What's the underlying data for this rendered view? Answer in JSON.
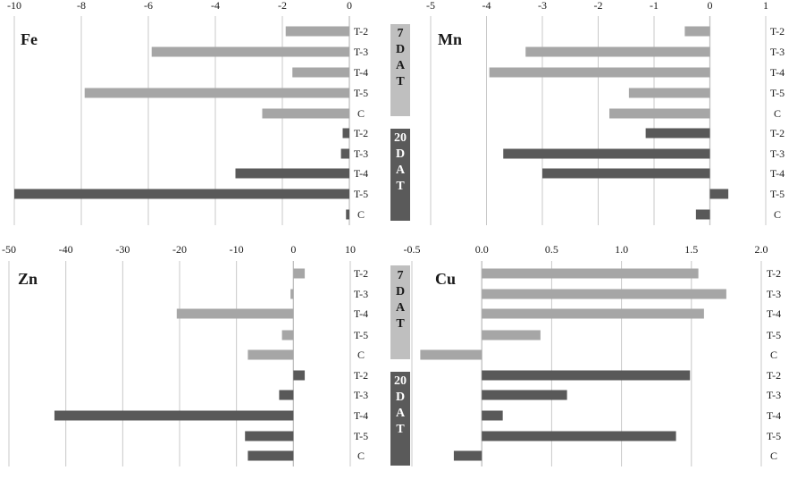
{
  "colors": {
    "dat7_bar": "#a6a6a6",
    "dat20_bar": "#595959",
    "dat7_box": "#bfbfbf",
    "dat20_box": "#5a5a5a",
    "grid": "#c8c8c8",
    "axis": "#bfbfbf",
    "text": "#1a1a1a"
  },
  "rows": [
    "T-2",
    "T-3",
    "T-4",
    "T-5",
    "C",
    "T-2",
    "T-3",
    "T-4",
    "T-5",
    "C"
  ],
  "groups": [
    {
      "label_chars": [
        "7",
        "D",
        "A",
        "T"
      ],
      "series": "7 DAT"
    },
    {
      "label_chars": [
        "20",
        "D",
        "A",
        "T"
      ],
      "series": "20 DAT"
    }
  ],
  "chart_data": [
    {
      "type": "bar",
      "orientation": "horizontal",
      "title": "Fe",
      "categories": [
        "T-2",
        "T-3",
        "T-4",
        "T-5",
        "C"
      ],
      "xlim": [
        -10,
        0
      ],
      "ticks": [
        "-10",
        "-8",
        "-6",
        "-4",
        "-2",
        "0"
      ],
      "tick_values": [
        -10,
        -8,
        -6,
        -4,
        -2,
        0
      ],
      "series": [
        {
          "values": [
            -1.9,
            -5.9,
            -1.7,
            -7.9,
            -2.6
          ]
        },
        {
          "values": [
            -0.2,
            -0.25,
            -3.4,
            -10,
            -0.1
          ]
        }
      ],
      "grid": true
    },
    {
      "type": "bar",
      "orientation": "horizontal",
      "title": "Mn",
      "categories": [
        "T-2",
        "T-3",
        "T-4",
        "T-5",
        "C"
      ],
      "xlim": [
        -5,
        1
      ],
      "ticks": [
        "-5",
        "-4",
        "-3",
        "-2",
        "-1",
        "0",
        "1"
      ],
      "tick_values": [
        -5,
        -4,
        -3,
        -2,
        -1,
        0,
        1
      ],
      "series": [
        {
          "values": [
            -0.45,
            -3.3,
            -3.95,
            -1.45,
            -1.8
          ]
        },
        {
          "values": [
            -1.15,
            -3.7,
            -3.0,
            0.33,
            -0.25
          ]
        }
      ],
      "grid": true
    },
    {
      "type": "bar",
      "orientation": "horizontal",
      "title": "Zn",
      "categories": [
        "T-2",
        "T-3",
        "T-4",
        "T-5",
        "C"
      ],
      "xlim": [
        -50,
        10
      ],
      "ticks": [
        "-50",
        "-40",
        "-30",
        "-20",
        "-10",
        "0",
        "10"
      ],
      "tick_values": [
        -50,
        -40,
        -30,
        -20,
        -10,
        0,
        10
      ],
      "series": [
        {
          "values": [
            2,
            -0.5,
            -20.5,
            -2,
            -8
          ]
        },
        {
          "values": [
            2,
            -2.5,
            -42,
            -8.5,
            -8
          ]
        }
      ],
      "grid": true
    },
    {
      "type": "bar",
      "orientation": "horizontal",
      "title": "Cu",
      "categories": [
        "T-2",
        "T-3",
        "T-4",
        "T-5",
        "C"
      ],
      "xlim": [
        -0.5,
        2.0
      ],
      "ticks": [
        "-0.5",
        "0.0",
        "0.5",
        "1.0",
        "1.5",
        "2.0"
      ],
      "tick_values": [
        -0.5,
        0.0,
        0.5,
        1.0,
        1.5,
        2.0
      ],
      "series": [
        {
          "values": [
            1.55,
            1.75,
            1.59,
            0.42,
            -0.44
          ]
        },
        {
          "values": [
            1.49,
            0.61,
            0.15,
            1.39,
            -0.2
          ]
        }
      ],
      "grid": true
    }
  ]
}
